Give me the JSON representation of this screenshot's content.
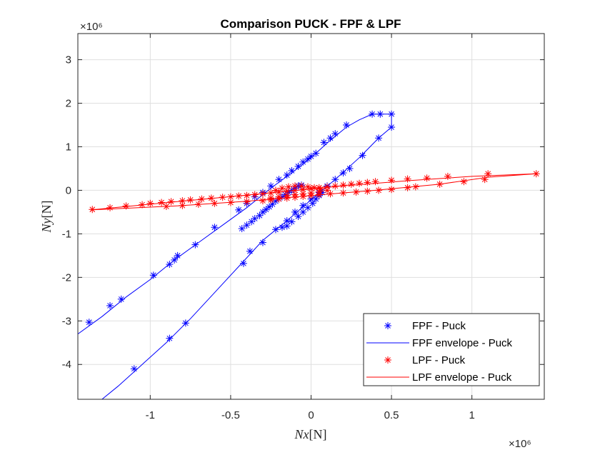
{
  "chart_data": {
    "type": "line",
    "title": "Comparison PUCK - FPF & LPF",
    "xlabel": "Nx",
    "xlabel_unit": "[N]",
    "ylabel": "Ny",
    "ylabel_unit": "[N]",
    "x_exponent": "×10⁶",
    "y_exponent": "×10⁶",
    "xlim": [
      -1.45,
      1.45
    ],
    "ylim": [
      -4.8,
      3.6
    ],
    "xticks": [
      -1,
      -0.5,
      0,
      0.5,
      1
    ],
    "yticks": [
      -4,
      -3,
      -2,
      -1,
      0,
      1,
      2,
      3
    ],
    "xtick_labels": [
      "-1",
      "-0.5",
      "0",
      "0.5",
      "1"
    ],
    "ytick_labels": [
      "-4",
      "-3",
      "-2",
      "-1",
      "0",
      "1",
      "2",
      "3"
    ],
    "grid": true,
    "legend_position": "bottom-right",
    "series": [
      {
        "name": "FPF - Puck",
        "kind": "markers",
        "marker": "asterisk",
        "color": "#0000ff",
        "points": [
          [
            -1.38,
            -3.03
          ],
          [
            -1.25,
            -2.65
          ],
          [
            -1.18,
            -2.5
          ],
          [
            -0.98,
            -1.95
          ],
          [
            -0.88,
            -1.7
          ],
          [
            -0.85,
            -1.6
          ],
          [
            -0.83,
            -1.5
          ],
          [
            -0.72,
            -1.25
          ],
          [
            -0.6,
            -0.85
          ],
          [
            -0.45,
            -0.45
          ],
          [
            -0.4,
            -0.3
          ],
          [
            -0.35,
            -0.15
          ],
          [
            -0.3,
            -0.05
          ],
          [
            -0.25,
            0.1
          ],
          [
            -0.2,
            0.25
          ],
          [
            -0.15,
            0.35
          ],
          [
            -0.12,
            0.45
          ],
          [
            -0.08,
            0.55
          ],
          [
            -0.05,
            0.65
          ],
          [
            -0.02,
            0.72
          ],
          [
            0.0,
            0.78
          ],
          [
            0.03,
            0.85
          ],
          [
            0.08,
            1.1
          ],
          [
            0.12,
            1.2
          ],
          [
            0.15,
            1.3
          ],
          [
            0.22,
            1.5
          ],
          [
            0.38,
            1.75
          ],
          [
            0.43,
            1.75
          ],
          [
            0.5,
            1.75
          ],
          [
            0.5,
            1.45
          ],
          [
            0.42,
            1.2
          ],
          [
            0.32,
            0.8
          ],
          [
            0.24,
            0.5
          ],
          [
            0.2,
            0.4
          ],
          [
            0.15,
            0.25
          ],
          [
            0.1,
            0.1
          ],
          [
            0.05,
            -0.05
          ],
          [
            0.0,
            -0.2
          ],
          [
            -0.05,
            -0.35
          ],
          [
            -0.1,
            -0.5
          ],
          [
            -0.15,
            -0.7
          ],
          [
            -0.18,
            -0.85
          ],
          [
            -0.22,
            -0.9
          ],
          [
            -0.3,
            -1.2
          ],
          [
            -0.38,
            -1.4
          ],
          [
            -0.42,
            -1.68
          ],
          [
            -0.78,
            -3.05
          ],
          [
            -0.88,
            -3.4
          ],
          [
            -1.1,
            -4.1
          ],
          [
            -0.43,
            -0.88
          ],
          [
            -0.4,
            -0.8
          ],
          [
            -0.37,
            -0.72
          ],
          [
            -0.35,
            -0.65
          ],
          [
            -0.32,
            -0.58
          ],
          [
            -0.3,
            -0.5
          ],
          [
            -0.28,
            -0.44
          ],
          [
            -0.26,
            -0.38
          ],
          [
            -0.24,
            -0.32
          ],
          [
            -0.22,
            -0.25
          ],
          [
            -0.2,
            -0.2
          ],
          [
            -0.18,
            -0.15
          ],
          [
            -0.16,
            -0.1
          ],
          [
            -0.14,
            -0.05
          ],
          [
            -0.12,
            0.0
          ],
          [
            -0.1,
            0.05
          ],
          [
            -0.08,
            0.1
          ],
          [
            -0.06,
            0.12
          ],
          [
            0.07,
            -0.05
          ],
          [
            0.05,
            -0.12
          ],
          [
            0.03,
            -0.2
          ],
          [
            0.01,
            -0.3
          ],
          [
            -0.02,
            -0.4
          ],
          [
            -0.05,
            -0.5
          ],
          [
            -0.08,
            -0.6
          ],
          [
            -0.12,
            -0.72
          ],
          [
            -0.15,
            -0.82
          ]
        ]
      },
      {
        "name": "FPF envelope - Puck",
        "kind": "line",
        "color": "#0000ff",
        "points": [
          [
            -1.45,
            -3.3
          ],
          [
            -1.3,
            -2.9
          ],
          [
            -1.15,
            -2.45
          ],
          [
            -1.0,
            -2.05
          ],
          [
            -0.85,
            -1.6
          ],
          [
            -0.7,
            -1.2
          ],
          [
            -0.55,
            -0.8
          ],
          [
            -0.4,
            -0.4
          ],
          [
            -0.25,
            0.05
          ],
          [
            -0.12,
            0.4
          ],
          [
            0.0,
            0.75
          ],
          [
            0.12,
            1.15
          ],
          [
            0.22,
            1.45
          ],
          [
            0.3,
            1.62
          ],
          [
            0.38,
            1.75
          ],
          [
            0.5,
            1.75
          ],
          [
            0.5,
            1.45
          ],
          [
            0.42,
            1.2
          ],
          [
            0.3,
            0.75
          ],
          [
            0.15,
            0.25
          ],
          [
            0.0,
            -0.22
          ],
          [
            -0.15,
            -0.7
          ],
          [
            -0.3,
            -1.15
          ],
          [
            -0.45,
            -1.75
          ],
          [
            -0.6,
            -2.35
          ],
          [
            -0.75,
            -2.95
          ],
          [
            -0.9,
            -3.5
          ],
          [
            -1.05,
            -4.0
          ],
          [
            -1.2,
            -4.5
          ],
          [
            -1.3,
            -4.8
          ]
        ]
      },
      {
        "name": "LPF - Puck",
        "kind": "markers",
        "marker": "asterisk",
        "color": "#ff0000",
        "points": [
          [
            -1.36,
            -0.44
          ],
          [
            -1.25,
            -0.4
          ],
          [
            -1.15,
            -0.36
          ],
          [
            -1.05,
            -0.33
          ],
          [
            -1.0,
            -0.3
          ],
          [
            -0.93,
            -0.28
          ],
          [
            -0.87,
            -0.26
          ],
          [
            -0.8,
            -0.24
          ],
          [
            -0.75,
            -0.22
          ],
          [
            -0.68,
            -0.2
          ],
          [
            -0.62,
            -0.18
          ],
          [
            -0.55,
            -0.16
          ],
          [
            -0.5,
            -0.15
          ],
          [
            -0.45,
            -0.13
          ],
          [
            -0.4,
            -0.12
          ],
          [
            -0.35,
            -0.1
          ],
          [
            -0.3,
            -0.08
          ],
          [
            -0.25,
            -0.06
          ],
          [
            -0.2,
            -0.04
          ],
          [
            -0.15,
            -0.02
          ],
          [
            -0.1,
            0.0
          ],
          [
            -0.05,
            0.02
          ],
          [
            0.0,
            0.04
          ],
          [
            0.05,
            0.06
          ],
          [
            0.1,
            0.08
          ],
          [
            0.15,
            0.1
          ],
          [
            0.2,
            0.12
          ],
          [
            0.25,
            0.14
          ],
          [
            0.3,
            0.16
          ],
          [
            0.35,
            0.18
          ],
          [
            0.4,
            0.2
          ],
          [
            0.5,
            0.23
          ],
          [
            0.6,
            0.26
          ],
          [
            0.72,
            0.28
          ],
          [
            0.85,
            0.32
          ],
          [
            1.1,
            0.38
          ],
          [
            1.4,
            0.38
          ],
          [
            1.08,
            0.25
          ],
          [
            0.95,
            0.2
          ],
          [
            0.8,
            0.14
          ],
          [
            0.65,
            0.08
          ],
          [
            0.6,
            0.06
          ],
          [
            0.5,
            0.02
          ],
          [
            0.42,
            0.0
          ],
          [
            0.35,
            -0.02
          ],
          [
            0.28,
            -0.04
          ],
          [
            0.2,
            -0.06
          ],
          [
            0.12,
            -0.08
          ],
          [
            0.05,
            -0.1
          ],
          [
            0.0,
            -0.12
          ],
          [
            -0.05,
            -0.14
          ],
          [
            -0.1,
            -0.16
          ],
          [
            -0.15,
            -0.18
          ],
          [
            -0.2,
            -0.2
          ],
          [
            -0.25,
            -0.22
          ],
          [
            -0.3,
            -0.24
          ],
          [
            -0.4,
            -0.26
          ],
          [
            -0.5,
            -0.28
          ],
          [
            -0.6,
            -0.3
          ],
          [
            -0.7,
            -0.32
          ],
          [
            -0.8,
            -0.35
          ],
          [
            -0.9,
            -0.37
          ],
          [
            -0.22,
            0.0
          ],
          [
            -0.18,
            0.05
          ],
          [
            -0.14,
            0.08
          ],
          [
            -0.1,
            0.1
          ],
          [
            -0.06,
            0.1
          ],
          [
            -0.02,
            0.08
          ],
          [
            0.02,
            0.06
          ],
          [
            0.06,
            0.03
          ],
          [
            0.1,
            0.0
          ],
          [
            0.05,
            -0.03
          ],
          [
            0.0,
            -0.06
          ],
          [
            -0.05,
            -0.08
          ],
          [
            -0.1,
            -0.1
          ],
          [
            -0.15,
            -0.12
          ],
          [
            -0.2,
            -0.15
          ],
          [
            -0.25,
            -0.18
          ]
        ]
      },
      {
        "name": "LPF envelope - Puck",
        "kind": "line",
        "color": "#ff0000",
        "points": [
          [
            -1.37,
            -0.45
          ],
          [
            -1.0,
            -0.32
          ],
          [
            -0.6,
            -0.18
          ],
          [
            -0.2,
            -0.04
          ],
          [
            0.2,
            0.1
          ],
          [
            0.6,
            0.22
          ],
          [
            1.0,
            0.32
          ],
          [
            1.4,
            0.38
          ],
          [
            1.1,
            0.3
          ],
          [
            0.8,
            0.14
          ],
          [
            0.4,
            0.0
          ],
          [
            0.0,
            -0.12
          ],
          [
            -0.4,
            -0.25
          ],
          [
            -0.8,
            -0.35
          ],
          [
            -1.37,
            -0.45
          ]
        ]
      }
    ]
  }
}
